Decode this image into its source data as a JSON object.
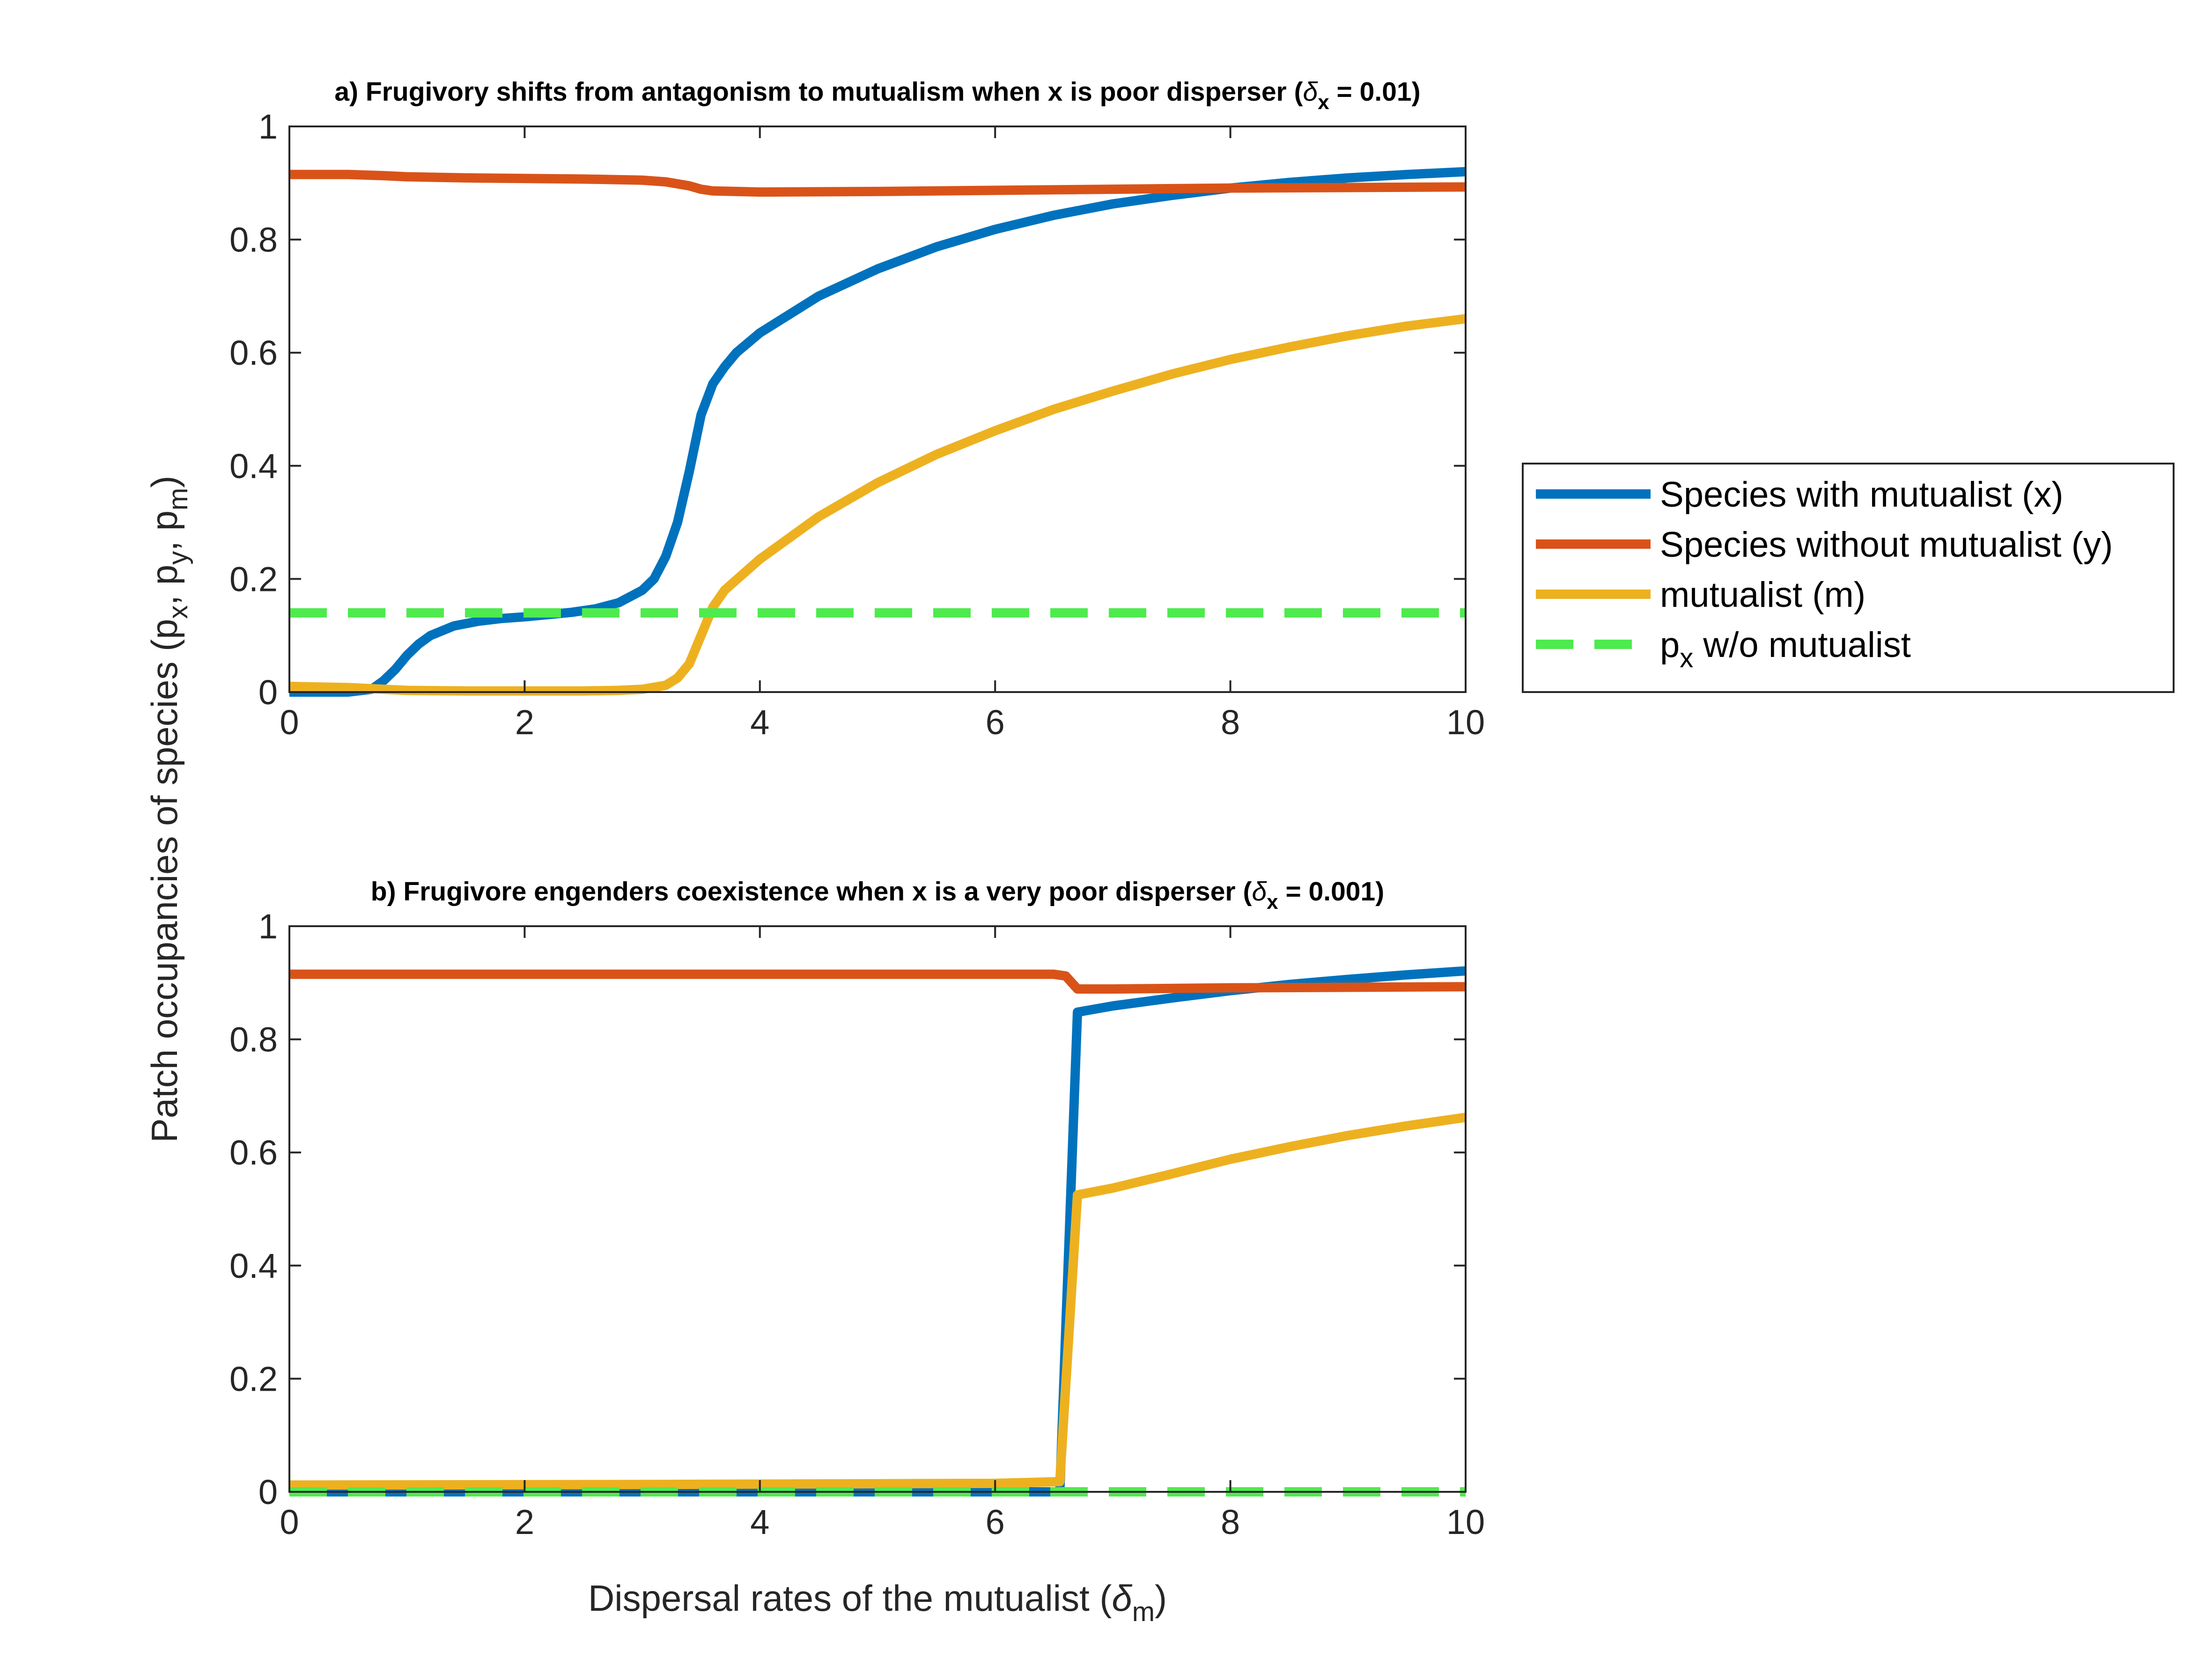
{
  "legend": {
    "entries": [
      {
        "label": "Species with mutualist (x)",
        "color": "#0072BD",
        "dash": "solid"
      },
      {
        "label": "Species without mutualist (y)",
        "color": "#D95319",
        "dash": "solid"
      },
      {
        "label": "mutualist (m)",
        "color": "#EDB120",
        "dash": "solid"
      },
      {
        "label_main": "p",
        "label_sub": "x",
        "label_rest": " w/o mutualist",
        "color": "#4DEB4D",
        "dash": "dashed"
      }
    ]
  },
  "shared_ylabel": {
    "prefix": "Patch occupancies of species (p",
    "sub1": "x",
    "sep1": ", p",
    "sub2": "y",
    "sep2": ", p",
    "sub3": "m",
    "suffix": ")"
  },
  "shared_xlabel": {
    "prefix": "Dispersal rates of the mutualist (",
    "symbol": "δ",
    "sub": "m",
    "suffix": ")"
  },
  "panels": {
    "a": {
      "title_prefix": "a) Frugivory shifts from antagonism to mutualism when x is poor disperser (",
      "title_symbol": "δ",
      "title_sub": "x",
      "title_suffix": " = 0.01)"
    },
    "b": {
      "title_prefix": "b) Frugivore engenders coexistence when x is a very poor disperser (",
      "title_symbol": "δ",
      "title_sub": "x",
      "title_suffix": " = 0.001)"
    }
  },
  "chart_data": [
    {
      "type": "line",
      "title": "a) Frugivory shifts from antagonism to mutualism when x is poor disperser (δx = 0.01)",
      "xlim": [
        0,
        10
      ],
      "ylim": [
        0,
        1
      ],
      "xticks": [
        0,
        2,
        4,
        6,
        8,
        10
      ],
      "yticks": [
        0,
        0.2,
        0.4,
        0.6,
        0.8,
        1
      ],
      "grid": false,
      "legend_position": "outside-right",
      "series": [
        {
          "name": "Species with mutualist (x)",
          "color": "#0072BD",
          "x": [
            0,
            0.5,
            0.7,
            0.8,
            0.9,
            1.0,
            1.1,
            1.2,
            1.4,
            1.6,
            1.8,
            2.0,
            2.2,
            2.4,
            2.6,
            2.8,
            3.0,
            3.1,
            3.2,
            3.3,
            3.4,
            3.5,
            3.6,
            3.7,
            3.8,
            4.0,
            4.5,
            5.0,
            5.5,
            6.0,
            6.5,
            7.0,
            7.5,
            8.0,
            8.5,
            9.0,
            9.5,
            10.0
          ],
          "y": [
            0,
            0,
            0.005,
            0.02,
            0.04,
            0.065,
            0.085,
            0.1,
            0.117,
            0.125,
            0.13,
            0.133,
            0.137,
            0.141,
            0.147,
            0.158,
            0.18,
            0.2,
            0.24,
            0.3,
            0.39,
            0.49,
            0.545,
            0.575,
            0.6,
            0.635,
            0.7,
            0.748,
            0.787,
            0.818,
            0.843,
            0.863,
            0.878,
            0.891,
            0.901,
            0.909,
            0.915,
            0.92
          ]
        },
        {
          "name": "Species without mutualist (y)",
          "color": "#D95319",
          "x": [
            0,
            0.5,
            0.8,
            1.0,
            1.5,
            2.0,
            2.5,
            3.0,
            3.2,
            3.4,
            3.5,
            3.6,
            3.8,
            4.0,
            5.0,
            6.0,
            7.0,
            8.0,
            9.0,
            10.0
          ],
          "y": [
            0.915,
            0.915,
            0.913,
            0.911,
            0.909,
            0.908,
            0.907,
            0.905,
            0.902,
            0.895,
            0.889,
            0.886,
            0.885,
            0.884,
            0.885,
            0.887,
            0.889,
            0.891,
            0.892,
            0.893
          ]
        },
        {
          "name": "mutualist (m)",
          "color": "#EDB120",
          "x": [
            0,
            0.5,
            1.0,
            1.5,
            2.0,
            2.5,
            2.8,
            3.0,
            3.2,
            3.3,
            3.4,
            3.5,
            3.6,
            3.7,
            4.0,
            4.5,
            5.0,
            5.5,
            6.0,
            6.5,
            7.0,
            7.5,
            8.0,
            8.5,
            9.0,
            9.5,
            10.0
          ],
          "y": [
            0.01,
            0.008,
            0.003,
            0.002,
            0.002,
            0.002,
            0.003,
            0.005,
            0.012,
            0.025,
            0.05,
            0.1,
            0.15,
            0.18,
            0.235,
            0.31,
            0.37,
            0.42,
            0.462,
            0.5,
            0.532,
            0.562,
            0.588,
            0.61,
            0.63,
            0.647,
            0.66
          ]
        },
        {
          "name": "p x w/o mutualist",
          "color": "#4DEB4D",
          "dashed": true,
          "x": [
            0,
            10
          ],
          "y": [
            0.14,
            0.14
          ]
        }
      ]
    },
    {
      "type": "line",
      "title": "b) Frugivore engenders coexistence when x is a very poor disperser (δx = 0.001)",
      "xlim": [
        0,
        10
      ],
      "ylim": [
        0,
        1
      ],
      "xticks": [
        0,
        2,
        4,
        6,
        8,
        10
      ],
      "yticks": [
        0,
        0.2,
        0.4,
        0.6,
        0.8,
        1
      ],
      "grid": false,
      "series": [
        {
          "name": "Species with mutualist (x)",
          "color": "#0072BD",
          "x": [
            0,
            6.55,
            6.7,
            7.0,
            7.5,
            8.0,
            8.5,
            9.0,
            9.5,
            10.0
          ],
          "y": [
            0,
            0,
            0.848,
            0.859,
            0.873,
            0.886,
            0.897,
            0.906,
            0.914,
            0.921
          ]
        },
        {
          "name": "Species without mutualist (y)",
          "color": "#D95319",
          "x": [
            0,
            6.5,
            6.6,
            6.7,
            7.0,
            8.0,
            9.0,
            10.0
          ],
          "y": [
            0.915,
            0.915,
            0.912,
            0.889,
            0.889,
            0.891,
            0.892,
            0.893
          ]
        },
        {
          "name": "mutualist (m)",
          "color": "#EDB120",
          "x": [
            0,
            3.0,
            6.0,
            6.55,
            6.7,
            7.0,
            7.5,
            8.0,
            8.5,
            9.0,
            9.5,
            10.0
          ],
          "y": [
            0.012,
            0.013,
            0.015,
            0.018,
            0.525,
            0.537,
            0.562,
            0.588,
            0.61,
            0.63,
            0.647,
            0.662
          ]
        },
        {
          "name": "p x w/o mutualist",
          "color": "#4DEB4D",
          "dashed": true,
          "x": [
            0,
            10
          ],
          "y": [
            0,
            0
          ]
        }
      ]
    }
  ]
}
